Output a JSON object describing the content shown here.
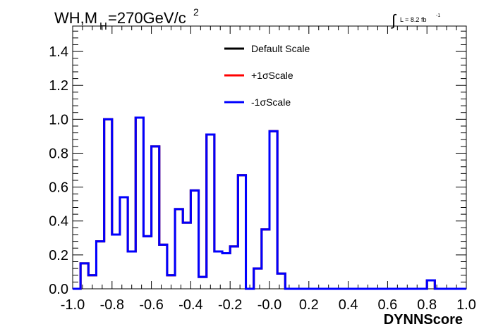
{
  "chart_data": {
    "type": "line",
    "title_main": "WH,M",
    "title_sub": "H",
    "title_rest": "=270GeV/c",
    "title_sup": "2",
    "lumi_integral": "∫",
    "lumi_label": "L = 8.2 fb",
    "lumi_sup": "-1",
    "xlabel": "DYNNScore",
    "ylabel": "",
    "xlim": [
      -1.0,
      1.0
    ],
    "ylim": [
      0.0,
      1.55
    ],
    "x_ticks": [
      "-1.0",
      "-0.8",
      "-0.6",
      "-0.4",
      "-0.2",
      "-0.0",
      "0.2",
      "0.4",
      "0.6",
      "0.8",
      "1.0"
    ],
    "x_tick_values": [
      -1.0,
      -0.8,
      -0.6,
      -0.4,
      -0.2,
      0.0,
      0.2,
      0.4,
      0.6,
      0.8,
      1.0
    ],
    "y_ticks": [
      "0.0",
      "0.2",
      "0.4",
      "0.6",
      "0.8",
      "1.0",
      "1.2",
      "1.4"
    ],
    "y_tick_values": [
      0.0,
      0.2,
      0.4,
      0.6,
      0.8,
      1.0,
      1.2,
      1.4
    ],
    "bin_edges": [
      -1.0,
      -0.96,
      -0.92,
      -0.88,
      -0.84,
      -0.8,
      -0.76,
      -0.72,
      -0.68,
      -0.64,
      -0.6,
      -0.56,
      -0.52,
      -0.48,
      -0.44,
      -0.4,
      -0.36,
      -0.32,
      -0.28,
      -0.24,
      -0.2,
      -0.16,
      -0.12,
      -0.08,
      -0.04,
      0.0,
      0.04,
      0.08,
      0.12,
      0.16,
      0.2,
      0.24,
      0.28,
      0.32,
      0.36,
      0.4,
      0.44,
      0.48,
      0.52,
      0.56,
      0.6,
      0.64,
      0.68,
      0.72,
      0.76,
      0.8,
      0.84,
      0.88,
      0.92,
      0.96,
      1.0
    ],
    "legend_position": "top-center",
    "series": [
      {
        "name": "Default Scale",
        "color": "#000000",
        "values": [
          0,
          0.15,
          0.08,
          0.28,
          1.0,
          0.32,
          0.54,
          0.22,
          1.01,
          0.31,
          0.84,
          0.26,
          0.08,
          0.47,
          0.39,
          0.58,
          0.07,
          0.91,
          0.22,
          0.21,
          0.25,
          0.67,
          0.0,
          0.12,
          0.35,
          0.93,
          0.09,
          0,
          0,
          0,
          0,
          0,
          0,
          0,
          0.0,
          0,
          0,
          0,
          0,
          0,
          0,
          0,
          0,
          0,
          0,
          0.05,
          0,
          0,
          0,
          0
        ]
      },
      {
        "name": "+1σScale",
        "color": "#ff0000",
        "values": [
          0,
          0.15,
          0.08,
          0.28,
          1.0,
          0.32,
          0.54,
          0.22,
          1.01,
          0.31,
          0.84,
          0.26,
          0.08,
          0.47,
          0.39,
          0.58,
          0.07,
          0.91,
          0.22,
          0.21,
          0.25,
          0.67,
          0.0,
          0.12,
          0.35,
          0.93,
          0.09,
          0,
          0,
          0,
          0,
          0,
          0,
          0,
          0.0,
          0,
          0,
          0,
          0,
          0,
          0,
          0,
          0,
          0,
          0,
          0.05,
          0,
          0,
          0,
          0
        ]
      },
      {
        "name": "-1σScale",
        "color": "#0000ff",
        "values": [
          0,
          0.15,
          0.08,
          0.28,
          1.0,
          0.32,
          0.54,
          0.22,
          1.01,
          0.31,
          0.84,
          0.26,
          0.08,
          0.47,
          0.39,
          0.58,
          0.07,
          0.91,
          0.22,
          0.21,
          0.25,
          0.67,
          0.0,
          0.12,
          0.35,
          0.93,
          0.09,
          0,
          0,
          0,
          0,
          0,
          0,
          0,
          0.0,
          0,
          0,
          0,
          0,
          0,
          0,
          0,
          0,
          0,
          0,
          0.05,
          0,
          0,
          0,
          0
        ]
      }
    ]
  }
}
